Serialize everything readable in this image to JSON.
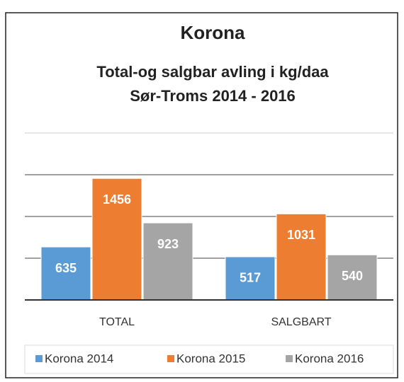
{
  "chart_data": {
    "type": "bar",
    "title": "Korona",
    "subtitle": [
      "Total-og salgbar avling i kg/daa",
      "Sør-Troms 2014 - 2016"
    ],
    "categories": [
      "TOTAL",
      "SALGBART"
    ],
    "series": [
      {
        "name": "Korona 2014",
        "color": "#5b9bd5",
        "values": [
          635,
          517
        ]
      },
      {
        "name": "Korona 2015",
        "color": "#ed7d31",
        "values": [
          1456,
          1031
        ]
      },
      {
        "name": "Korona 2016",
        "color": "#a5a5a5",
        "values": [
          923,
          540
        ]
      }
    ],
    "ylim": [
      0,
      2000
    ],
    "yticks": [
      0,
      500,
      1000,
      1500,
      2000
    ],
    "grid": true,
    "legend": "bottom"
  }
}
